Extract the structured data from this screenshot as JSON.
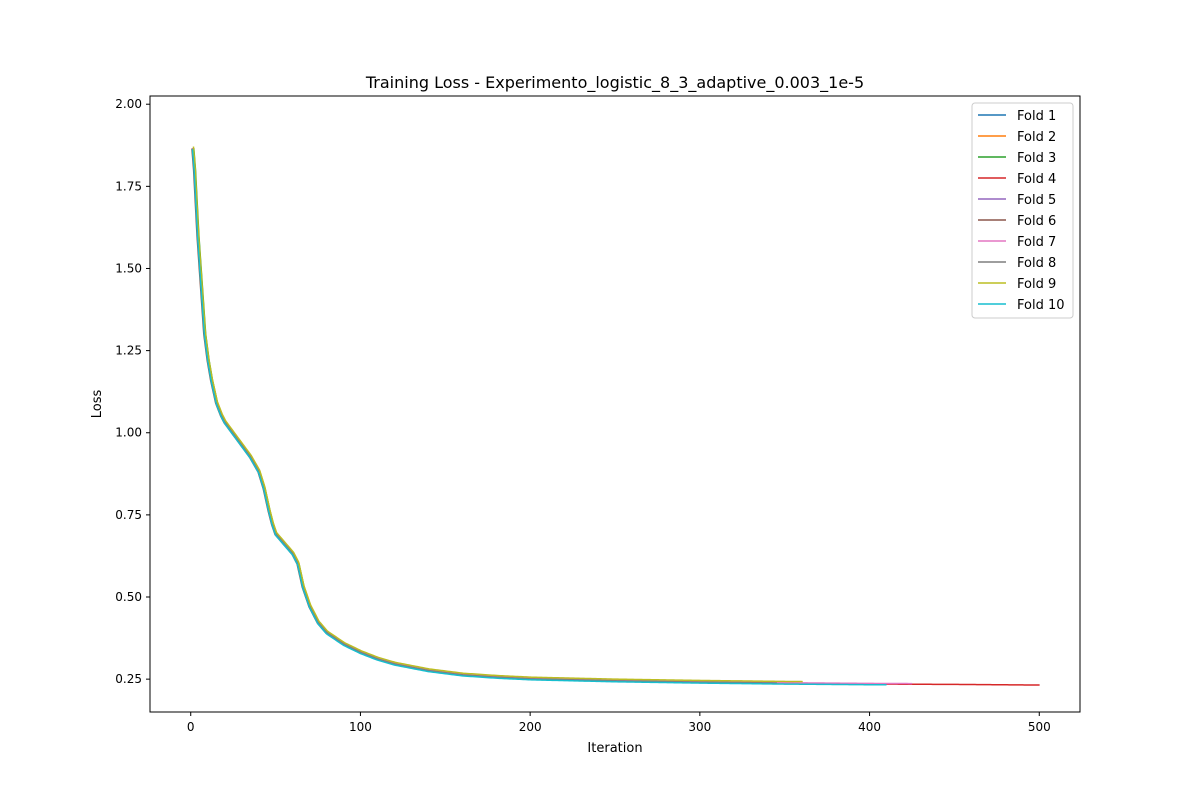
{
  "chart_data": {
    "type": "line",
    "title": "Training Loss - Experimento_logistic_8_3_adaptive_0.003_1e-5",
    "xlabel": "Iteration",
    "ylabel": "Loss",
    "xlim": [
      -24,
      524
    ],
    "ylim": [
      0.15,
      2.025
    ],
    "xticks": [
      0,
      100,
      200,
      300,
      400,
      500
    ],
    "yticks": [
      0.25,
      0.5,
      0.75,
      1.0,
      1.25,
      1.5,
      1.75,
      2.0
    ],
    "xtick_labels": [
      "0",
      "100",
      "200",
      "300",
      "400",
      "500"
    ],
    "ytick_labels": [
      "0.25",
      "0.50",
      "0.75",
      "1.00",
      "1.25",
      "1.50",
      "1.75",
      "2.00"
    ],
    "grid": false,
    "legend_position": "top-right",
    "base_curve": {
      "x": [
        0,
        2,
        4,
        6,
        8,
        10,
        12,
        15,
        18,
        20,
        25,
        30,
        35,
        40,
        43,
        46,
        48,
        50,
        55,
        60,
        63,
        66,
        70,
        75,
        80,
        90,
        100,
        110,
        120,
        140,
        160,
        180,
        200,
        250,
        300,
        350,
        400,
        450,
        500
      ],
      "y": [
        1.93,
        1.8,
        1.6,
        1.45,
        1.3,
        1.22,
        1.16,
        1.09,
        1.05,
        1.03,
        0.995,
        0.96,
        0.925,
        0.88,
        0.83,
        0.76,
        0.72,
        0.69,
        0.66,
        0.63,
        0.6,
        0.53,
        0.47,
        0.42,
        0.39,
        0.355,
        0.33,
        0.31,
        0.295,
        0.275,
        0.262,
        0.255,
        0.25,
        0.244,
        0.24,
        0.237,
        0.235,
        0.234,
        0.232
      ]
    },
    "series": [
      {
        "name": "Fold 1",
        "color": "#1f77b4",
        "end_iteration": 338,
        "x_shift": 0.0,
        "y_offset": 0.0
      },
      {
        "name": "Fold 2",
        "color": "#ff7f0e",
        "end_iteration": 355,
        "x_shift": 0.3,
        "y_offset": 0.002
      },
      {
        "name": "Fold 3",
        "color": "#2ca02c",
        "end_iteration": 370,
        "x_shift": 0.8,
        "y_offset": 0.001
      },
      {
        "name": "Fold 4",
        "color": "#d62728",
        "end_iteration": 500,
        "x_shift": 0.2,
        "y_offset": 0.0
      },
      {
        "name": "Fold 5",
        "color": "#9467bd",
        "end_iteration": 380,
        "x_shift": 0.5,
        "y_offset": 0.001
      },
      {
        "name": "Fold 6",
        "color": "#8c564b",
        "end_iteration": 362,
        "x_shift": -0.3,
        "y_offset": 0.0
      },
      {
        "name": "Fold 7",
        "color": "#e377c2",
        "end_iteration": 425,
        "x_shift": 0.1,
        "y_offset": 0.002
      },
      {
        "name": "Fold 8",
        "color": "#7f7f7f",
        "end_iteration": 345,
        "x_shift": 0.4,
        "y_offset": 0.001
      },
      {
        "name": "Fold 9",
        "color": "#bcbd22",
        "end_iteration": 360,
        "x_shift": 0.6,
        "y_offset": 0.006
      },
      {
        "name": "Fold 10",
        "color": "#17becf",
        "end_iteration": 410,
        "x_shift": 0.0,
        "y_offset": -0.002
      }
    ]
  }
}
